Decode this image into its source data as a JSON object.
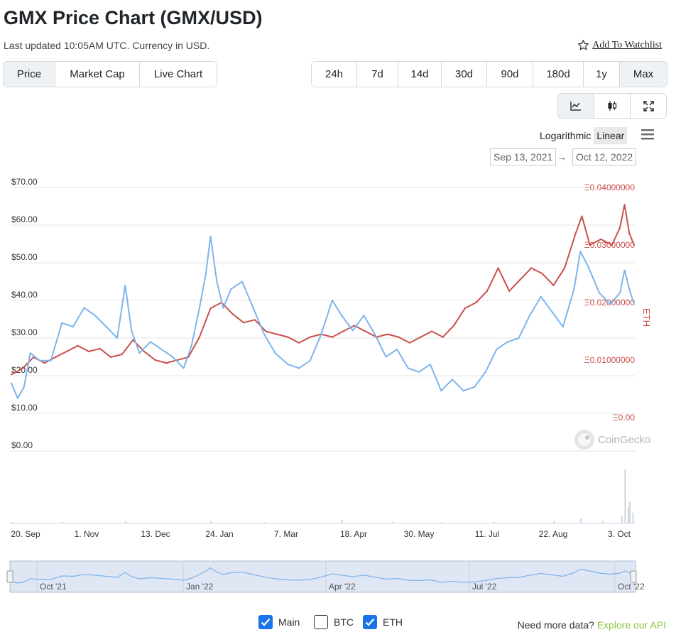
{
  "header": {
    "title": "GMX Price Chart (GMX/USD)",
    "subtitle": "Last updated 10:05AM UTC. Currency in USD.",
    "watchlist": "Add To Watchlist"
  },
  "tabs": [
    {
      "label": "Price",
      "active": true
    },
    {
      "label": "Market Cap",
      "active": false
    },
    {
      "label": "Live Chart",
      "active": false
    }
  ],
  "ranges": [
    {
      "label": "24h",
      "active": false
    },
    {
      "label": "7d",
      "active": false
    },
    {
      "label": "14d",
      "active": false
    },
    {
      "label": "30d",
      "active": false
    },
    {
      "label": "90d",
      "active": false
    },
    {
      "label": "180d",
      "active": false
    },
    {
      "label": "1y",
      "active": false
    },
    {
      "label": "Max",
      "active": true
    }
  ],
  "chart_types": [
    {
      "icon": "line-chart-icon",
      "active": true
    },
    {
      "icon": "candlestick-icon",
      "active": false
    },
    {
      "icon": "fullscreen-icon",
      "active": false
    }
  ],
  "scale": {
    "log": "Logarithmic",
    "linear": "Linear",
    "active": "linear"
  },
  "date_range": {
    "from": "Sep 13, 2021",
    "to": "Oct 12, 2022",
    "arrow": "→"
  },
  "legend": [
    {
      "label": "Main",
      "checked": true
    },
    {
      "label": "BTC",
      "checked": false
    },
    {
      "label": "ETH",
      "checked": true
    }
  ],
  "api": {
    "text": "Need more data?",
    "link": "Explore our API"
  },
  "colors": {
    "usd_line": "#7cb5ec",
    "eth_line": "#c9504d",
    "accent": "#1a73e8",
    "api_link": "#8dc63f"
  },
  "chart_data": {
    "type": "line",
    "title": "",
    "x_start": "2021-09-13",
    "x_end": "2022-10-12",
    "x_ticks": [
      "20. Sep",
      "1. Nov",
      "13. Dec",
      "24. Jan",
      "7. Mar",
      "18. Apr",
      "30. May",
      "11. Jul",
      "22. Aug",
      "3. Oct"
    ],
    "navigator_ticks": [
      "Oct '21",
      "Jan '22",
      "Apr '22",
      "Jul '22",
      "Oct '22"
    ],
    "y_left": {
      "ticks": [
        "$0.00",
        "$10.00",
        "$20.00",
        "$30.00",
        "$40.00",
        "$50.00",
        "$60.00",
        "$70.00"
      ],
      "ylim": [
        0,
        70
      ]
    },
    "y_right": {
      "label": "ETH",
      "ticks": [
        "Ξ0.00",
        "Ξ0.01000000",
        "Ξ0.02000000",
        "Ξ0.03000000",
        "Ξ0.04000000"
      ],
      "ylim": [
        0,
        0.04
      ]
    },
    "watermark": "CoinGecko",
    "series": [
      {
        "name": "Main",
        "axis": "left",
        "color": "#7cb5ec",
        "points": [
          [
            "2021-09-13",
            18
          ],
          [
            "2021-09-17",
            14
          ],
          [
            "2021-09-21",
            17
          ],
          [
            "2021-09-25",
            26
          ],
          [
            "2021-10-01",
            24
          ],
          [
            "2021-10-08",
            24
          ],
          [
            "2021-10-15",
            34
          ],
          [
            "2021-10-22",
            33
          ],
          [
            "2021-10-29",
            38
          ],
          [
            "2021-11-05",
            36
          ],
          [
            "2021-11-12",
            33
          ],
          [
            "2021-11-19",
            30
          ],
          [
            "2021-11-24",
            44
          ],
          [
            "2021-11-28",
            32
          ],
          [
            "2021-12-03",
            26
          ],
          [
            "2021-12-10",
            29
          ],
          [
            "2021-12-17",
            27
          ],
          [
            "2021-12-24",
            25
          ],
          [
            "2021-12-31",
            22
          ],
          [
            "2022-01-05",
            28
          ],
          [
            "2022-01-10",
            38
          ],
          [
            "2022-01-14",
            47
          ],
          [
            "2022-01-17",
            57
          ],
          [
            "2022-01-21",
            45
          ],
          [
            "2022-01-25",
            38
          ],
          [
            "2022-01-30",
            43
          ],
          [
            "2022-02-06",
            45
          ],
          [
            "2022-02-13",
            38
          ],
          [
            "2022-02-20",
            31
          ],
          [
            "2022-02-27",
            26
          ],
          [
            "2022-03-07",
            23
          ],
          [
            "2022-03-14",
            22
          ],
          [
            "2022-03-21",
            24
          ],
          [
            "2022-03-28",
            31
          ],
          [
            "2022-04-04",
            40
          ],
          [
            "2022-04-10",
            36
          ],
          [
            "2022-04-17",
            32
          ],
          [
            "2022-04-24",
            36
          ],
          [
            "2022-05-01",
            31
          ],
          [
            "2022-05-08",
            25
          ],
          [
            "2022-05-15",
            27
          ],
          [
            "2022-05-22",
            22
          ],
          [
            "2022-05-29",
            21
          ],
          [
            "2022-06-05",
            23
          ],
          [
            "2022-06-12",
            16
          ],
          [
            "2022-06-19",
            19
          ],
          [
            "2022-06-26",
            16
          ],
          [
            "2022-07-03",
            17
          ],
          [
            "2022-07-10",
            21
          ],
          [
            "2022-07-17",
            27
          ],
          [
            "2022-07-24",
            29
          ],
          [
            "2022-07-31",
            30
          ],
          [
            "2022-08-07",
            36
          ],
          [
            "2022-08-14",
            41
          ],
          [
            "2022-08-21",
            37
          ],
          [
            "2022-08-28",
            33
          ],
          [
            "2022-09-04",
            43
          ],
          [
            "2022-09-08",
            53
          ],
          [
            "2022-09-13",
            49
          ],
          [
            "2022-09-20",
            42
          ],
          [
            "2022-09-27",
            39
          ],
          [
            "2022-10-03",
            42
          ],
          [
            "2022-10-06",
            48
          ],
          [
            "2022-10-09",
            43
          ],
          [
            "2022-10-12",
            39
          ]
        ]
      },
      {
        "name": "ETH",
        "axis": "right",
        "color": "#c9504d",
        "points": [
          [
            "2021-09-13",
            0.0075
          ],
          [
            "2021-09-20",
            0.0085
          ],
          [
            "2021-09-27",
            0.0105
          ],
          [
            "2021-10-04",
            0.0095
          ],
          [
            "2021-10-11",
            0.0105
          ],
          [
            "2021-10-18",
            0.0115
          ],
          [
            "2021-10-25",
            0.0125
          ],
          [
            "2021-11-01",
            0.0115
          ],
          [
            "2021-11-08",
            0.012
          ],
          [
            "2021-11-15",
            0.0105
          ],
          [
            "2021-11-22",
            0.011
          ],
          [
            "2021-11-29",
            0.0135
          ],
          [
            "2021-12-06",
            0.0115
          ],
          [
            "2021-12-13",
            0.01
          ],
          [
            "2021-12-20",
            0.0095
          ],
          [
            "2021-12-27",
            0.01
          ],
          [
            "2022-01-03",
            0.0105
          ],
          [
            "2022-01-10",
            0.014
          ],
          [
            "2022-01-17",
            0.019
          ],
          [
            "2022-01-24",
            0.02
          ],
          [
            "2022-01-31",
            0.018
          ],
          [
            "2022-02-07",
            0.0165
          ],
          [
            "2022-02-14",
            0.017
          ],
          [
            "2022-02-21",
            0.015
          ],
          [
            "2022-02-28",
            0.0145
          ],
          [
            "2022-03-07",
            0.014
          ],
          [
            "2022-03-14",
            0.013
          ],
          [
            "2022-03-21",
            0.014
          ],
          [
            "2022-03-28",
            0.0145
          ],
          [
            "2022-04-04",
            0.014
          ],
          [
            "2022-04-11",
            0.015
          ],
          [
            "2022-04-18",
            0.016
          ],
          [
            "2022-04-25",
            0.015
          ],
          [
            "2022-05-02",
            0.014
          ],
          [
            "2022-05-09",
            0.0145
          ],
          [
            "2022-05-16",
            0.014
          ],
          [
            "2022-05-23",
            0.013
          ],
          [
            "2022-05-30",
            0.014
          ],
          [
            "2022-06-06",
            0.015
          ],
          [
            "2022-06-13",
            0.014
          ],
          [
            "2022-06-20",
            0.016
          ],
          [
            "2022-06-27",
            0.019
          ],
          [
            "2022-07-04",
            0.02
          ],
          [
            "2022-07-11",
            0.022
          ],
          [
            "2022-07-18",
            0.026
          ],
          [
            "2022-07-25",
            0.022
          ],
          [
            "2022-08-01",
            0.024
          ],
          [
            "2022-08-08",
            0.026
          ],
          [
            "2022-08-15",
            0.025
          ],
          [
            "2022-08-22",
            0.023
          ],
          [
            "2022-08-29",
            0.026
          ],
          [
            "2022-09-05",
            0.032
          ],
          [
            "2022-09-09",
            0.035
          ],
          [
            "2022-09-14",
            0.03
          ],
          [
            "2022-09-21",
            0.031
          ],
          [
            "2022-09-28",
            0.03
          ],
          [
            "2022-10-03",
            0.033
          ],
          [
            "2022-10-06",
            0.037
          ],
          [
            "2022-10-09",
            0.032
          ],
          [
            "2022-10-12",
            0.03
          ]
        ]
      }
    ],
    "volume": [
      [
        "2021-09-13",
        0.3
      ],
      [
        "2021-10-15",
        0.5
      ],
      [
        "2021-11-24",
        0.6
      ],
      [
        "2022-01-17",
        0.6
      ],
      [
        "2022-02-20",
        0.3
      ],
      [
        "2022-04-10",
        1.0
      ],
      [
        "2022-05-12",
        0.5
      ],
      [
        "2022-06-12",
        0.4
      ],
      [
        "2022-07-15",
        0.5
      ],
      [
        "2022-08-22",
        0.6
      ],
      [
        "2022-09-08",
        1.4
      ],
      [
        "2022-09-22",
        0.6
      ],
      [
        "2022-10-04",
        2.0
      ],
      [
        "2022-10-06",
        15
      ],
      [
        "2022-10-08",
        4.5
      ],
      [
        "2022-10-09",
        6
      ],
      [
        "2022-10-11",
        3
      ]
    ]
  }
}
